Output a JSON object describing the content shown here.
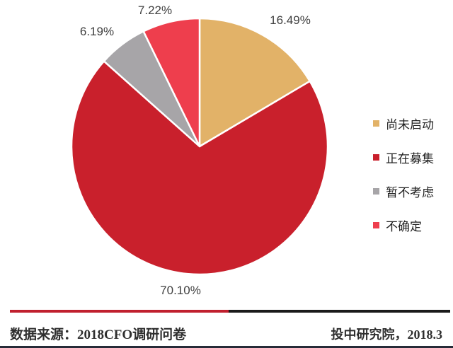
{
  "chart_data": {
    "type": "pie",
    "title": "",
    "labels": [
      "尚未启动",
      "正在募集",
      "暂不考虑",
      "不确定"
    ],
    "values": [
      16.49,
      70.1,
      6.19,
      7.22
    ],
    "value_labels": [
      "16.49%",
      "70.10%",
      "6.19%",
      "7.22%"
    ],
    "colors": [
      "#e2b268",
      "#c9202c",
      "#a7a5a8",
      "#ee3e4d"
    ],
    "start_angle_deg": -90,
    "direction": "clockwise",
    "slice_border_color": "#ffffff",
    "legend_position": "right"
  },
  "legend": {
    "items": [
      {
        "label": "尚未启动",
        "color": "#e2b268"
      },
      {
        "label": "正在募集",
        "color": "#c9202c"
      },
      {
        "label": "暂不考虑",
        "color": "#a7a5a8"
      },
      {
        "label": "不确定",
        "color": "#ee3e4d"
      }
    ]
  },
  "footer": {
    "source": "数据来源：2018CFO调研问卷",
    "credit": "投中研究院，2018.3"
  },
  "divider": {
    "left_color": "#c0202e",
    "right_color": "#1a1a1a",
    "bottom_bar_color": "#262b38"
  }
}
